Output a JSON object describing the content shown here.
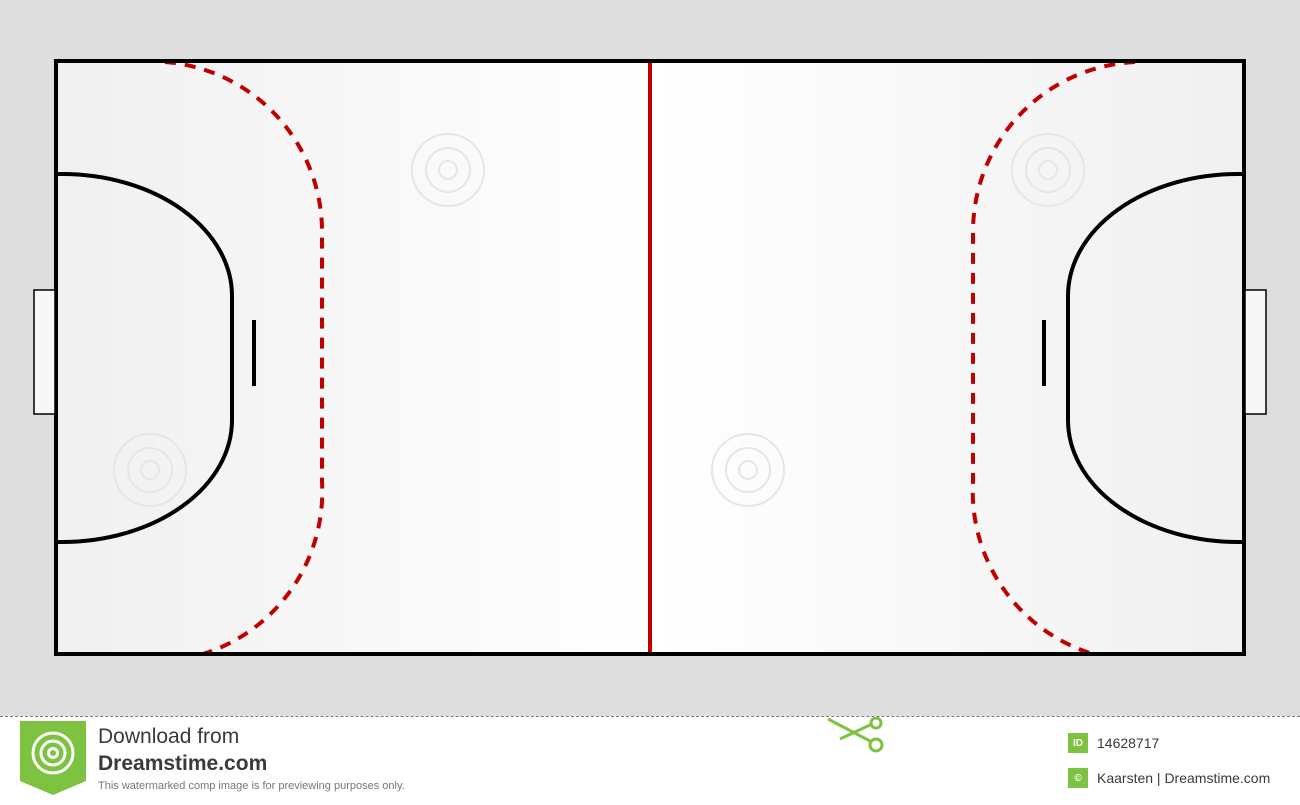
{
  "colors": {
    "page_background": "#dedede",
    "court_surface": "#f2f2f2",
    "court_lines": "#000000",
    "center_line": "#c00000",
    "free_throw_line": "#c00000",
    "brand_green": "#7dc241"
  },
  "footer": {
    "download_line1": "Download from",
    "download_line2": "Dreamstime.com",
    "note": "This watermarked comp image is for previewing purposes only.",
    "id_badge": "ID",
    "image_id": "14628717",
    "credit_badge": "©",
    "credit": "Kaarsten | Dreamstime.com"
  },
  "icons": {
    "logo": "dreamstime-spiral-logo",
    "scissors": "scissors-icon"
  }
}
